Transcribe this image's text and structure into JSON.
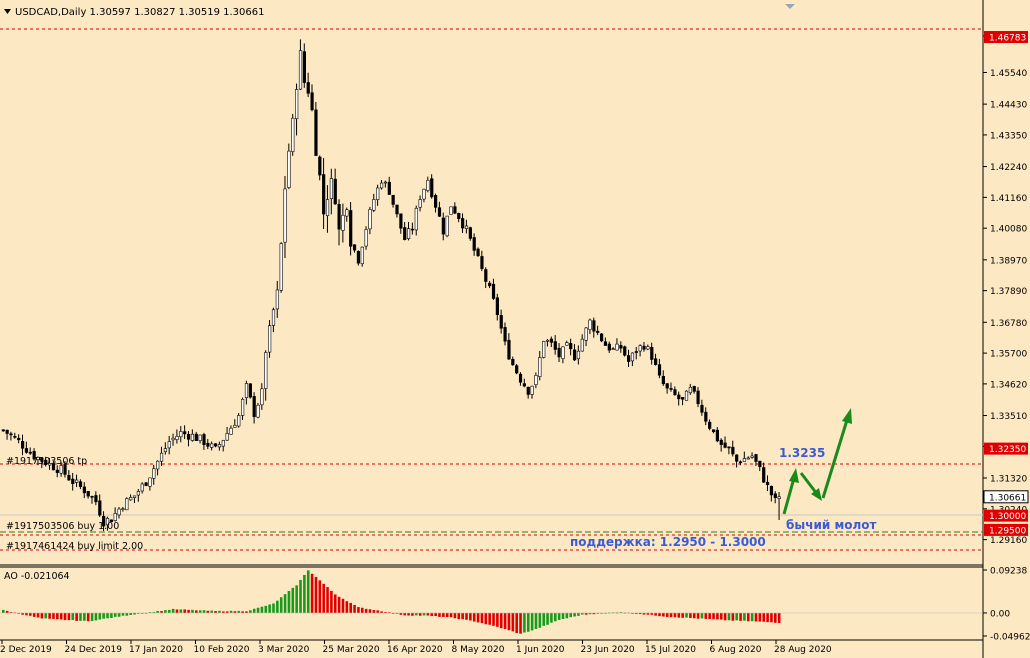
{
  "header": {
    "symbol_line": "USDCAD,Daily  1.30597 1.30827 1.30519 1.30661"
  },
  "colors": {
    "background": "#fde8c4",
    "bull_body": "#ffffff",
    "bear_body": "#000000",
    "level_red": "#e00000",
    "level_green": "#008000",
    "annotation_blue": "#3b5bd6",
    "arrow_green": "#1a8a1a",
    "ao_green": "#1a9a1a",
    "ao_red": "#e00000",
    "price_tag_red": "#e00000",
    "price_tag_white": "#ffffff"
  },
  "price_axis": {
    "ticks": [
      "1.46820",
      "1.45540",
      "1.44430",
      "1.43350",
      "1.42240",
      "1.41160",
      "1.40080",
      "1.38970",
      "1.37890",
      "1.36780",
      "1.35700",
      "1.34620",
      "1.33510",
      "1.32430",
      "1.31320",
      "1.30240",
      "1.29160"
    ],
    "level_tags": [
      {
        "label": "1.46783",
        "style": "red"
      },
      {
        "label": "1.32350",
        "style": "red"
      },
      {
        "label": "1.30661",
        "style": "white"
      },
      {
        "label": "1.30000",
        "style": "red"
      },
      {
        "label": "1.29500",
        "style": "red"
      }
    ]
  },
  "order_lines": [
    {
      "label": "#1917503506 tp"
    },
    {
      "label": "#1917503506 buy 1.00"
    },
    {
      "label": "#1917461424 buy limit 2.00"
    }
  ],
  "annotations": {
    "target_label": "1.3235",
    "pattern_label": "бычий молот",
    "support_label": "поддержка: 1.2950 - 1.3000"
  },
  "indicator": {
    "label": "AO -0.021064",
    "ticks": [
      "0.09238",
      "0.00",
      "-0.049623"
    ]
  },
  "time_axis": {
    "labels": [
      "2 Dec 2019",
      "24 Dec 2019",
      "17 Jan 2020",
      "10 Feb 2020",
      "3 Mar 2020",
      "25 Mar 2020",
      "16 Apr 2020",
      "8 May 2020",
      "1 Jun 2020",
      "23 Jun 2020",
      "15 Jul 2020",
      "6 Aug 2020",
      "28 Aug 2020"
    ]
  },
  "chart_data": {
    "type": "candlestick",
    "symbol": "USDCAD",
    "timeframe": "Daily",
    "last_bar": {
      "open": 1.30597,
      "high": 1.30827,
      "low": 1.30519,
      "close": 1.30661
    },
    "ylim": [
      1.2862,
      1.4745
    ],
    "price_path": [
      [
        0,
        1.33
      ],
      [
        4,
        1.326
      ],
      [
        8,
        1.321
      ],
      [
        12,
        1.318
      ],
      [
        15,
        1.316
      ],
      [
        18,
        1.312
      ],
      [
        21,
        1.309
      ],
      [
        24,
        1.305
      ],
      [
        26,
        1.298
      ],
      [
        28,
        1.299
      ],
      [
        31,
        1.304
      ],
      [
        34,
        1.307
      ],
      [
        37,
        1.312
      ],
      [
        40,
        1.319
      ],
      [
        43,
        1.326
      ],
      [
        46,
        1.329
      ],
      [
        49,
        1.328
      ],
      [
        52,
        1.326
      ],
      [
        55,
        1.323
      ],
      [
        58,
        1.329
      ],
      [
        61,
        1.335
      ],
      [
        63,
        1.345
      ],
      [
        65,
        1.336
      ],
      [
        67,
        1.343
      ],
      [
        68,
        1.358
      ],
      [
        69,
        1.365
      ],
      [
        70,
        1.372
      ],
      [
        71,
        1.378
      ],
      [
        72,
        1.395
      ],
      [
        73,
        1.415
      ],
      [
        74,
        1.428
      ],
      [
        75,
        1.438
      ],
      [
        76,
        1.451
      ],
      [
        77,
        1.462
      ],
      [
        78,
        1.452
      ],
      [
        79,
        1.449
      ],
      [
        80,
        1.442
      ],
      [
        81,
        1.428
      ],
      [
        82,
        1.419
      ],
      [
        83,
        1.406
      ],
      [
        84,
        1.412
      ],
      [
        85,
        1.417
      ],
      [
        86,
        1.411
      ],
      [
        87,
        1.4
      ],
      [
        88,
        1.405
      ],
      [
        89,
        1.409
      ],
      [
        90,
        1.396
      ],
      [
        92,
        1.39
      ],
      [
        94,
        1.401
      ],
      [
        96,
        1.411
      ],
      [
        98,
        1.418
      ],
      [
        100,
        1.414
      ],
      [
        102,
        1.405
      ],
      [
        104,
        1.397
      ],
      [
        106,
        1.401
      ],
      [
        108,
        1.412
      ],
      [
        110,
        1.418
      ],
      [
        112,
        1.409
      ],
      [
        114,
        1.4
      ],
      [
        116,
        1.409
      ],
      [
        118,
        1.405
      ],
      [
        120,
        1.4
      ],
      [
        122,
        1.393
      ],
      [
        124,
        1.386
      ],
      [
        126,
        1.379
      ],
      [
        128,
        1.371
      ],
      [
        130,
        1.36
      ],
      [
        132,
        1.353
      ],
      [
        134,
        1.348
      ],
      [
        136,
        1.344
      ],
      [
        138,
        1.348
      ],
      [
        140,
        1.362
      ],
      [
        142,
        1.36
      ],
      [
        144,
        1.356
      ],
      [
        146,
        1.359
      ],
      [
        148,
        1.356
      ],
      [
        150,
        1.362
      ],
      [
        152,
        1.368
      ],
      [
        154,
        1.364
      ],
      [
        156,
        1.36
      ],
      [
        158,
        1.358
      ],
      [
        160,
        1.359
      ],
      [
        162,
        1.354
      ],
      [
        164,
        1.358
      ],
      [
        166,
        1.36
      ],
      [
        168,
        1.356
      ],
      [
        170,
        1.348
      ],
      [
        172,
        1.344
      ],
      [
        174,
        1.342
      ],
      [
        176,
        1.34
      ],
      [
        178,
        1.344
      ],
      [
        180,
        1.34
      ],
      [
        182,
        1.334
      ],
      [
        184,
        1.329
      ],
      [
        186,
        1.325
      ],
      [
        188,
        1.323
      ],
      [
        190,
        1.319
      ],
      [
        192,
        1.32
      ],
      [
        194,
        1.321
      ],
      [
        196,
        1.316
      ],
      [
        198,
        1.31
      ],
      [
        200,
        1.305
      ],
      [
        201,
        1.3066
      ]
    ],
    "levels": [
      1.46783,
      1.3235,
      1.30661,
      1.3,
      1.295
    ],
    "forecast": {
      "target": 1.3235,
      "support": [
        1.295,
        1.3
      ]
    },
    "ao": {
      "ylim": [
        -0.049623,
        0.09238
      ],
      "points": [
        [
          0,
          0.006
        ],
        [
          10,
          -0.012
        ],
        [
          22,
          -0.018
        ],
        [
          33,
          -0.004
        ],
        [
          44,
          0.008
        ],
        [
          55,
          0.004
        ],
        [
          63,
          0.004
        ],
        [
          70,
          0.02
        ],
        [
          76,
          0.06
        ],
        [
          79,
          0.092
        ],
        [
          82,
          0.07
        ],
        [
          86,
          0.04
        ],
        [
          92,
          0.012
        ],
        [
          98,
          0.004
        ],
        [
          104,
          -0.005
        ],
        [
          110,
          -0.006
        ],
        [
          116,
          -0.01
        ],
        [
          122,
          -0.018
        ],
        [
          128,
          -0.03
        ],
        [
          134,
          -0.045
        ],
        [
          138,
          -0.035
        ],
        [
          144,
          -0.015
        ],
        [
          150,
          -0.004
        ],
        [
          156,
          0.0
        ],
        [
          160,
          0.002
        ],
        [
          166,
          -0.003
        ],
        [
          172,
          -0.008
        ],
        [
          180,
          -0.012
        ],
        [
          188,
          -0.016
        ],
        [
          194,
          -0.018
        ],
        [
          201,
          -0.021
        ]
      ]
    }
  }
}
